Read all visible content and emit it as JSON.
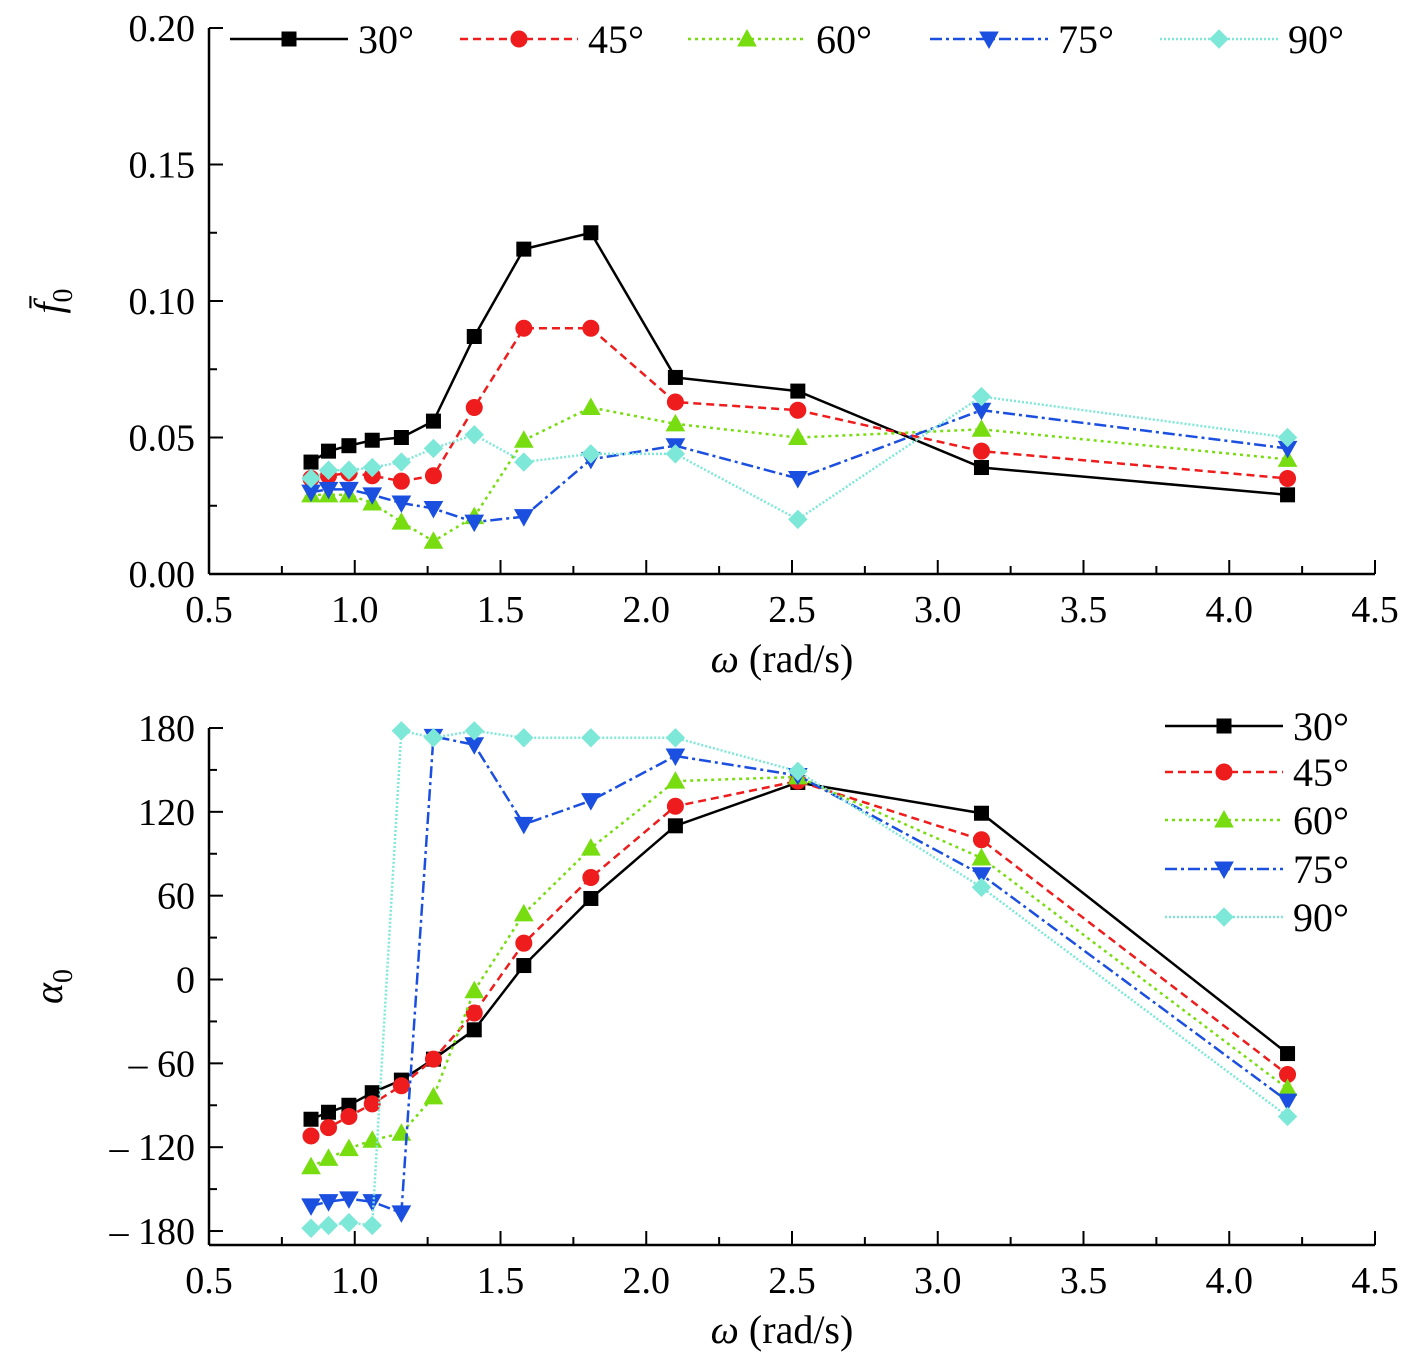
{
  "chart_data": [
    {
      "type": "line",
      "xlabel": "ω (rad/s)",
      "ylabel": "f̄0",
      "xlim": [
        0.5,
        4.5
      ],
      "ylim": [
        0,
        0.2
      ],
      "xticks": [
        "0.5",
        "1.0",
        "1.5",
        "2.0",
        "2.5",
        "3.0",
        "3.5",
        "4.0",
        "4.5"
      ],
      "yticks": [
        "0.00",
        "0.05",
        "0.10",
        "0.15",
        "0.20"
      ],
      "grid": false,
      "legend_position": "top, single row",
      "series": [
        {
          "name": "30°",
          "color": "#000000",
          "marker": "square",
          "dash": "",
          "x": [
            0.85,
            0.91,
            0.98,
            1.06,
            1.16,
            1.27,
            1.41,
            1.58,
            1.81,
            2.1,
            2.52,
            3.15,
            4.2
          ],
          "y": [
            0.041,
            0.045,
            0.047,
            0.049,
            0.05,
            0.056,
            0.087,
            0.119,
            0.125,
            0.072,
            0.067,
            0.039,
            0.029
          ]
        },
        {
          "name": "45°",
          "color": "#ee1c1c",
          "marker": "circle",
          "dash": "8,5",
          "x": [
            0.85,
            0.91,
            0.98,
            1.06,
            1.16,
            1.27,
            1.41,
            1.58,
            1.81,
            2.1,
            2.52,
            3.15,
            4.2
          ],
          "y": [
            0.035,
            0.036,
            0.037,
            0.036,
            0.034,
            0.036,
            0.061,
            0.09,
            0.09,
            0.063,
            0.06,
            0.045,
            0.035
          ]
        },
        {
          "name": "60°",
          "color": "#77dd11",
          "marker": "triangle-up",
          "dash": "3,4",
          "x": [
            0.85,
            0.91,
            0.98,
            1.06,
            1.16,
            1.27,
            1.41,
            1.58,
            1.81,
            2.1,
            2.52,
            3.15,
            4.2
          ],
          "y": [
            0.029,
            0.029,
            0.029,
            0.026,
            0.019,
            0.012,
            0.021,
            0.049,
            0.061,
            0.055,
            0.05,
            0.053,
            0.042
          ]
        },
        {
          "name": "75°",
          "color": "#1b4fe0",
          "marker": "triangle-down",
          "dash": "12,4,3,4",
          "x": [
            0.85,
            0.91,
            0.98,
            1.06,
            1.16,
            1.27,
            1.41,
            1.58,
            1.81,
            2.1,
            2.52,
            3.15,
            4.2
          ],
          "y": [
            0.03,
            0.031,
            0.031,
            0.029,
            0.026,
            0.024,
            0.019,
            0.021,
            0.042,
            0.047,
            0.035,
            0.06,
            0.046
          ]
        },
        {
          "name": "90°",
          "color": "#7ee8d8",
          "marker": "diamond",
          "dash": "2,2",
          "x": [
            0.85,
            0.91,
            0.98,
            1.06,
            1.16,
            1.27,
            1.41,
            1.58,
            1.81,
            2.1,
            2.52,
            3.15,
            4.2
          ],
          "y": [
            0.035,
            0.038,
            0.038,
            0.039,
            0.041,
            0.046,
            0.051,
            0.041,
            0.044,
            0.044,
            0.02,
            0.065,
            0.05
          ]
        }
      ]
    },
    {
      "type": "line",
      "xlabel": "ω (rad/s)",
      "ylabel": "α0",
      "xlim": [
        0.5,
        4.5
      ],
      "ylim": [
        -190,
        180
      ],
      "xticks": [
        "0.5",
        "1.0",
        "1.5",
        "2.0",
        "2.5",
        "3.0",
        "3.5",
        "4.0",
        "4.5"
      ],
      "yticks": [
        "180",
        "120",
        "60",
        "0",
        "– 60",
        "– 120",
        "– 180"
      ],
      "grid": false,
      "legend_position": "top-right, stacked",
      "series": [
        {
          "name": "30°",
          "color": "#000000",
          "marker": "square",
          "dash": "",
          "x": [
            0.85,
            0.91,
            0.98,
            1.06,
            1.16,
            1.27,
            1.41,
            1.58,
            1.81,
            2.1,
            2.52,
            3.15,
            4.2
          ],
          "y": [
            -100,
            -95,
            -90,
            -81,
            -72,
            -57,
            -36,
            10,
            58,
            110,
            141,
            119,
            -53
          ]
        },
        {
          "name": "45°",
          "color": "#ee1c1c",
          "marker": "circle",
          "dash": "8,5",
          "x": [
            0.85,
            0.91,
            0.98,
            1.06,
            1.16,
            1.27,
            1.41,
            1.58,
            1.81,
            2.1,
            2.52,
            3.15,
            4.2
          ],
          "y": [
            -112,
            -106,
            -98,
            -89,
            -76,
            -57,
            -24,
            26,
            73,
            124,
            142,
            100,
            -68
          ]
        },
        {
          "name": "60°",
          "color": "#77dd11",
          "marker": "triangle-up",
          "dash": "3,4",
          "x": [
            0.85,
            0.91,
            0.98,
            1.06,
            1.16,
            1.27,
            1.41,
            1.58,
            1.81,
            2.1,
            2.52,
            3.15,
            4.2
          ],
          "y": [
            -134,
            -128,
            -121,
            -115,
            -110,
            -84,
            -8,
            47,
            94,
            142,
            145,
            87,
            -78
          ]
        },
        {
          "name": "75°",
          "color": "#1b4fe0",
          "marker": "triangle-down",
          "dash": "12,4,3,4",
          "x": [
            0.85,
            0.91,
            0.98,
            1.06,
            1.16,
            1.27,
            1.41,
            1.58,
            1.81,
            2.1,
            2.52,
            3.15,
            4.2
          ],
          "y": [
            -162,
            -159,
            -157,
            -159,
            -167,
            174,
            168,
            111,
            128,
            160,
            146,
            75,
            -87
          ]
        },
        {
          "name": "90°",
          "color": "#7ee8d8",
          "marker": "diamond",
          "dash": "2,2",
          "x": [
            0.85,
            0.91,
            0.98,
            1.06,
            1.16,
            1.27,
            1.41,
            1.58,
            1.81,
            2.1,
            2.52,
            3.15,
            4.2
          ],
          "y": [
            -178,
            -176,
            -174,
            -176,
            178,
            173,
            178,
            173,
            173,
            173,
            149,
            66,
            -98
          ]
        }
      ]
    }
  ]
}
